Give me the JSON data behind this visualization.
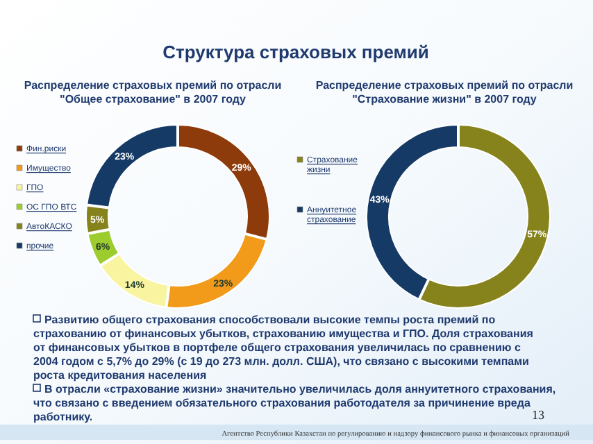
{
  "chart_data": [
    {
      "type": "donut",
      "title": "Распределение страховых премий по отрасли \"Общее страхование\" в 2007 году",
      "categories": [
        "Фин.риски",
        "Имущество",
        "ГПО",
        "ОС ГПО ВТС",
        "АвтоКАСКО",
        "прочие"
      ],
      "values": [
        29,
        23,
        14,
        6,
        5,
        23
      ],
      "value_labels": [
        "29%",
        "23%",
        "14%",
        "6%",
        "5%",
        "23%"
      ],
      "colors": [
        "#8e3b0c",
        "#f29a1a",
        "#f8f4a0",
        "#9ccc2e",
        "#86821c",
        "#163a66"
      ],
      "legend": "left"
    },
    {
      "type": "donut",
      "title": "Распределение страховых премий по отрасли \"Страхование жизни\" в 2007 году",
      "categories": [
        "Страхование жизни",
        "Аннуитетное страхование"
      ],
      "values": [
        57,
        43
      ],
      "value_labels": [
        "57%",
        "43%"
      ],
      "colors": [
        "#86821c",
        "#163a66"
      ],
      "legend": "left"
    },
    {
      "type": "other",
      "title": "Структура страховых премий",
      "annotations": [
        "Развитию общего страхования способствовали высокие темпы роста премий по страхованию от финансовых убытков, страхованию имущества и ГПО. Доля страхования от финансовых убытков в портфеле общего страхования увеличилась по сравнению с 2004 годом с  5,7% до 29% (с 19 до 273 млн. долл. США), что связано с высокими темпами роста кредитования населения",
        "В отрасли «страхование жизни» значительно увеличилась доля аннуитетного страхования, что связано с введением обязательного страхования работодателя за причинение вреда работнику.",
        "13",
        "Агентство Республики Казахстан по регулированию и надзору финансового рынка и финансовых организаций"
      ]
    }
  ]
}
